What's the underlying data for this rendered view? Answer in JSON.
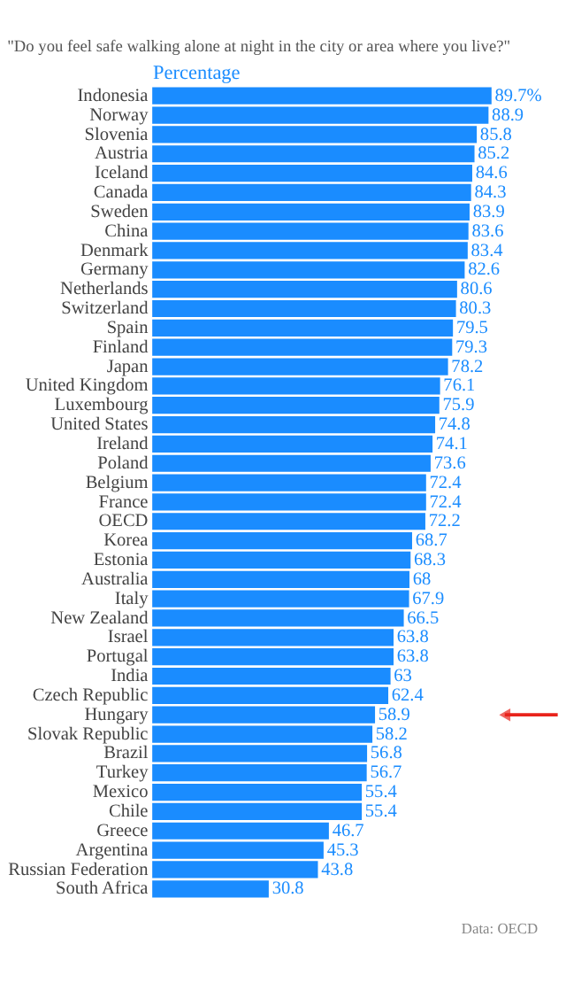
{
  "chart_data": {
    "type": "bar",
    "orientation": "horizontal",
    "title": "\"Do you feel safe walking alone at night in the city or area where you live?\"",
    "xlabel": "Percentage",
    "categories": [
      "Indonesia",
      "Norway",
      "Slovenia",
      "Austria",
      "Iceland",
      "Canada",
      "Sweden",
      "China",
      "Denmark",
      "Germany",
      "Netherlands",
      "Switzerland",
      "Spain",
      "Finland",
      "Japan",
      "United Kingdom",
      "Luxembourg",
      "United States",
      "Ireland",
      "Poland",
      "Belgium",
      "France",
      "OECD",
      "Korea",
      "Estonia",
      "Australia",
      "Italy",
      "New Zealand",
      "Israel",
      "Portugal",
      "India",
      "Czech Republic",
      "Hungary",
      "Slovak Republic",
      "Brazil",
      "Turkey",
      "Mexico",
      "Chile",
      "Greece",
      "Argentina",
      "Russian Federation",
      "South Africa"
    ],
    "values": [
      89.7,
      88.9,
      85.8,
      85.2,
      84.6,
      84.3,
      83.9,
      83.6,
      83.4,
      82.6,
      80.6,
      80.3,
      79.5,
      79.3,
      78.2,
      76.1,
      75.9,
      74.8,
      74.1,
      73.6,
      72.4,
      72.4,
      72.2,
      68.7,
      68.3,
      68,
      67.9,
      66.5,
      63.8,
      63.8,
      63,
      62.4,
      58.9,
      58.2,
      56.8,
      56.7,
      55.4,
      55.4,
      46.7,
      45.3,
      43.8,
      30.8
    ],
    "value_labels": [
      "89.7%",
      "88.9",
      "85.8",
      "85.2",
      "84.6",
      "84.3",
      "83.9",
      "83.6",
      "83.4",
      "82.6",
      "80.6",
      "80.3",
      "79.5",
      "79.3",
      "78.2",
      "76.1",
      "75.9",
      "74.8",
      "74.1",
      "73.6",
      "72.4",
      "72.4",
      "72.2",
      "68.7",
      "68.3",
      "68",
      "67.9",
      "66.5",
      "63.8",
      "63.8",
      "63",
      "62.4",
      "58.9",
      "58.2",
      "56.8",
      "56.7",
      "55.4",
      "55.4",
      "46.7",
      "45.3",
      "43.8",
      "30.8"
    ],
    "color": "#1a8cff",
    "grid": false,
    "annotations": [
      "Data: OECD"
    ]
  }
}
